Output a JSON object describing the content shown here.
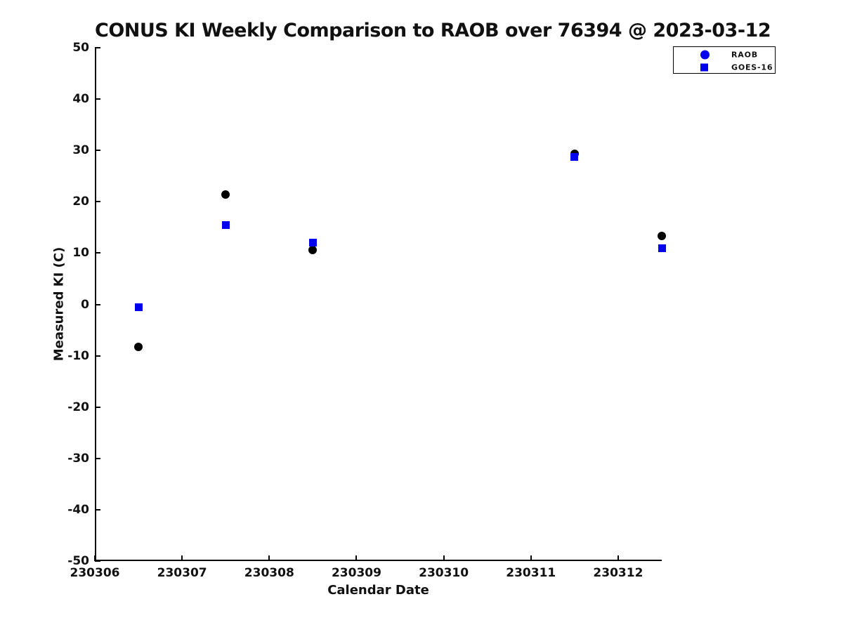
{
  "chart_data": {
    "type": "scatter",
    "title": "CONUS KI Weekly Comparison to RAOB over 76394 @ 2023-03-12",
    "xlabel": "Calendar Date",
    "ylabel": "Measured KI (C)",
    "xlim": [
      230306,
      230312.5
    ],
    "ylim": [
      -50,
      50
    ],
    "xticks": [
      230306,
      230307,
      230308,
      230309,
      230310,
      230311,
      230312
    ],
    "yticks": [
      -50,
      -40,
      -30,
      -20,
      -10,
      0,
      10,
      20,
      30,
      40,
      50
    ],
    "grid": false,
    "legend_position": "top-right",
    "colors": {
      "axis": "#000000",
      "raob_plot_marker": "#000000",
      "goes16_plot_marker": "#0000ee",
      "legend_marker_blue": "#0000ee"
    },
    "series": [
      {
        "name": "RAOB",
        "marker": "circle",
        "plot_color": "#000000",
        "legend_color": "#0000ee",
        "marker_size": 12,
        "points": [
          [
            230306.5,
            -8.3
          ],
          [
            230307.5,
            21.4
          ],
          [
            230308.5,
            10.6
          ],
          [
            230311.5,
            29.3
          ],
          [
            230312.5,
            13.4
          ]
        ]
      },
      {
        "name": "GOES-16",
        "marker": "square",
        "plot_color": "#0000ee",
        "legend_color": "#0000ee",
        "marker_size": 11,
        "points": [
          [
            230306.5,
            -0.5
          ],
          [
            230307.5,
            15.4
          ],
          [
            230308.5,
            12.0
          ],
          [
            230311.5,
            28.7
          ],
          [
            230312.5,
            11.0
          ]
        ]
      }
    ]
  }
}
